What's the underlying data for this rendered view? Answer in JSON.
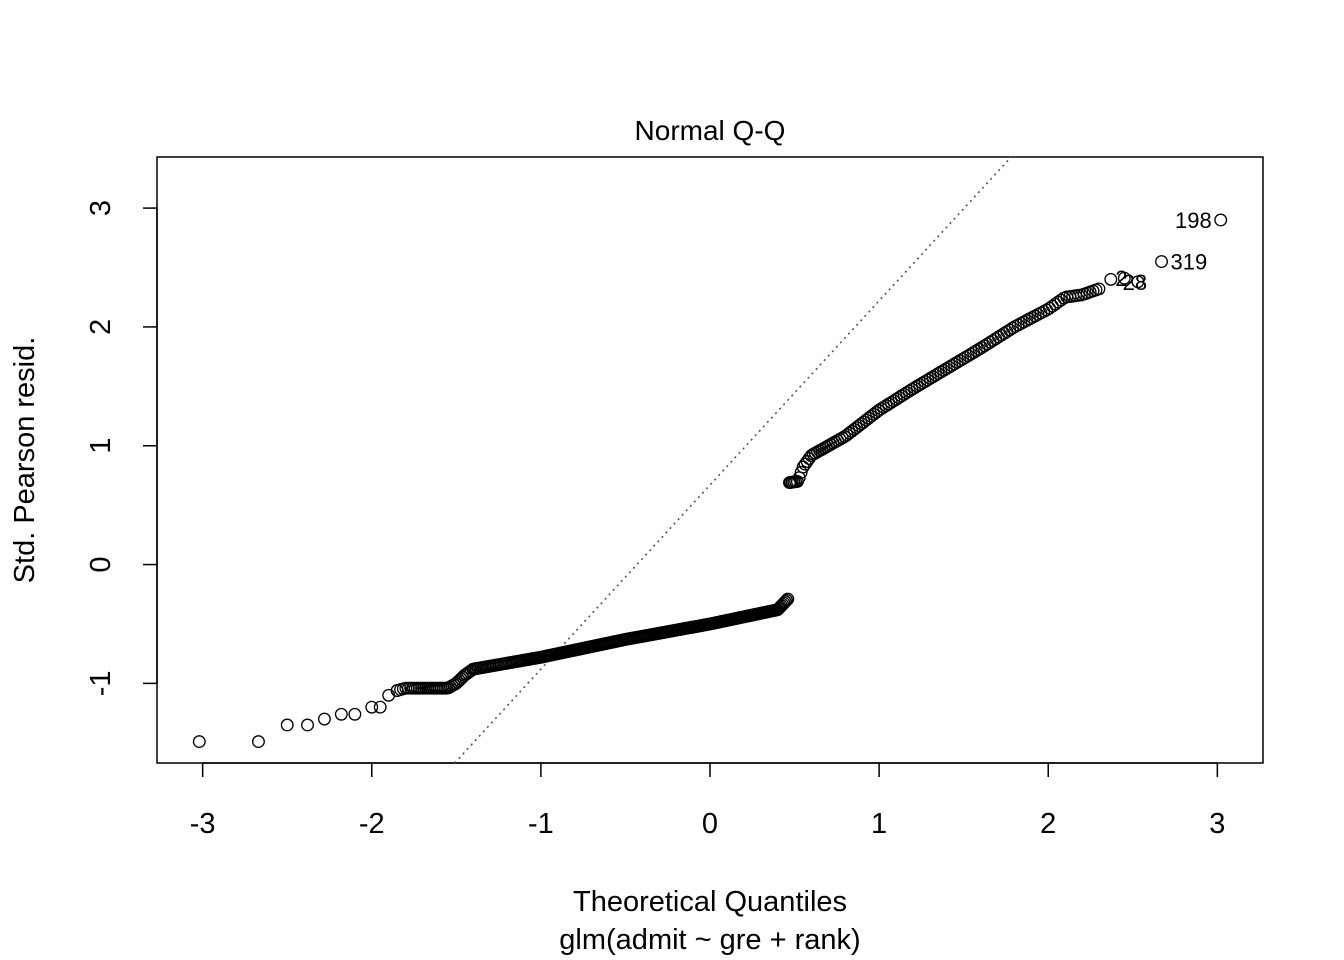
{
  "chart_data": {
    "type": "scatter",
    "title": "Normal Q-Q",
    "xlabel": "Theoretical Quantiles",
    "subtitle": "glm(admit ~ gre + rank)",
    "ylabel": "Std. Pearson resid.",
    "xlim": [
      -3.27,
      3.27
    ],
    "ylim": [
      -1.67,
      3.43
    ],
    "x_ticks": [
      -3,
      -2,
      -1,
      0,
      1,
      2,
      3
    ],
    "y_ticks": [
      -1,
      0,
      1,
      2,
      3
    ],
    "grid": false,
    "reference_line": {
      "style": "dotted",
      "color": "#555555",
      "intercept": 0.67,
      "slope": 1.55
    },
    "negative_group": {
      "n": 273,
      "x_range": [
        -3.02,
        0.46
      ],
      "profile": [
        [
          -3.02,
          -1.49
        ],
        [
          -2.67,
          -1.49
        ],
        [
          -2.5,
          -1.35
        ],
        [
          -2.38,
          -1.35
        ],
        [
          -2.28,
          -1.3
        ],
        [
          -2.18,
          -1.26
        ],
        [
          -2.1,
          -1.26
        ],
        [
          -2.0,
          -1.2
        ],
        [
          -1.95,
          -1.2
        ],
        [
          -1.9,
          -1.1
        ],
        [
          -1.85,
          -1.06
        ],
        [
          -1.8,
          -1.04
        ],
        [
          -1.55,
          -1.04
        ],
        [
          -1.5,
          -1.0
        ],
        [
          -1.45,
          -0.93
        ],
        [
          -1.4,
          -0.88
        ],
        [
          -1.0,
          -0.78
        ],
        [
          -0.5,
          -0.63
        ],
        [
          0.0,
          -0.5
        ],
        [
          0.2,
          -0.44
        ],
        [
          0.4,
          -0.38
        ],
        [
          0.46,
          -0.29
        ]
      ]
    },
    "positive_group": {
      "n": 127,
      "x_range": [
        0.47,
        3.02
      ],
      "profile": [
        [
          0.47,
          0.69
        ],
        [
          0.52,
          0.7
        ],
        [
          0.55,
          0.82
        ],
        [
          0.6,
          0.92
        ],
        [
          0.8,
          1.08
        ],
        [
          1.0,
          1.3
        ],
        [
          1.2,
          1.48
        ],
        [
          1.4,
          1.65
        ],
        [
          1.6,
          1.82
        ],
        [
          1.8,
          2.0
        ],
        [
          2.0,
          2.15
        ],
        [
          2.1,
          2.25
        ],
        [
          2.2,
          2.27
        ],
        [
          2.3,
          2.32
        ],
        [
          2.37,
          2.4
        ],
        [
          2.45,
          2.4
        ],
        [
          2.53,
          2.38
        ],
        [
          2.67,
          2.55
        ],
        [
          3.02,
          2.9
        ]
      ],
      "tail_points": [
        [
          2.37,
          2.4
        ],
        [
          2.45,
          2.41
        ],
        [
          2.53,
          2.38
        ],
        [
          2.67,
          2.55
        ],
        [
          3.02,
          2.9
        ]
      ]
    },
    "point_labels": [
      {
        "label": "198",
        "x": 3.02,
        "y": 2.9
      },
      {
        "label": "319",
        "x": 2.67,
        "y": 2.55
      },
      {
        "label": "28",
        "x": 2.53,
        "y": 2.38
      },
      {
        "label": "2",
        "x": 2.45,
        "y": 2.41
      }
    ]
  }
}
